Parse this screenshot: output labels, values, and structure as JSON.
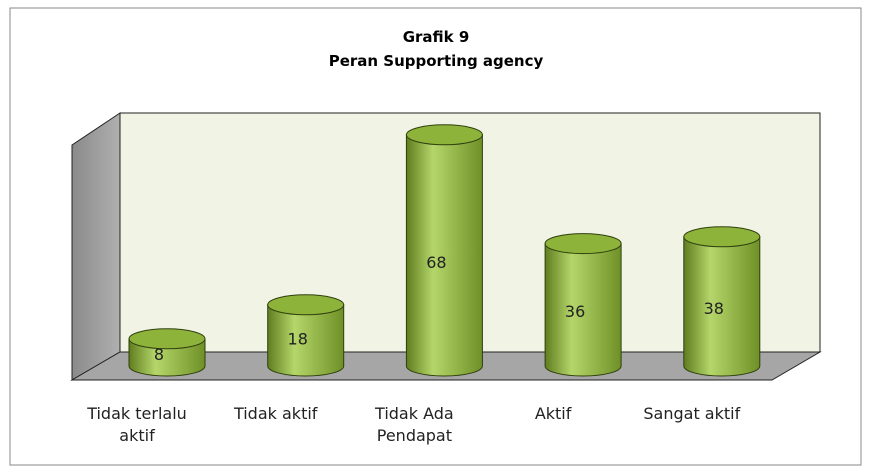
{
  "chart_data": {
    "type": "bar",
    "title": "Grafik 9",
    "subtitle": "Peran Supporting agency",
    "categories": [
      "Tidak terlalu aktif",
      "Tidak aktif",
      "Tidak Ada Pendapat",
      "Aktif",
      "Sangat aktif"
    ],
    "values": [
      8,
      18,
      68,
      36,
      38
    ],
    "color": "#8db33a"
  }
}
